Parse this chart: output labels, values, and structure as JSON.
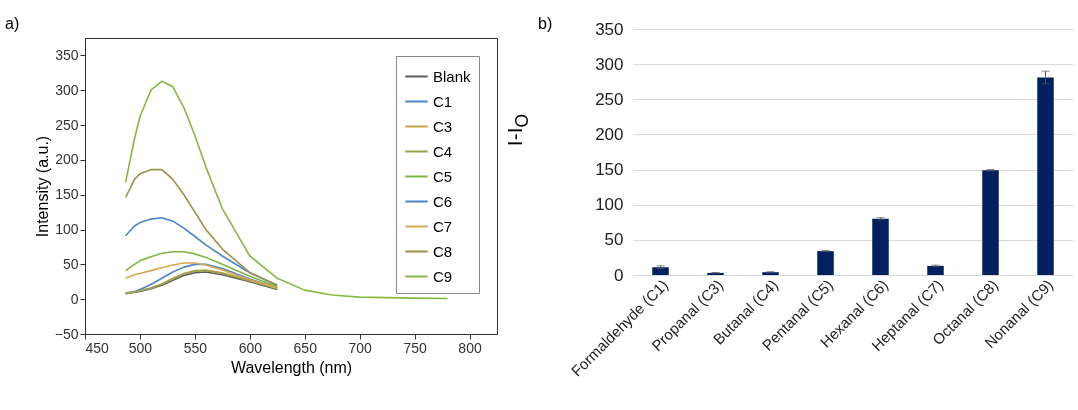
{
  "chart_data": [
    {
      "type": "line",
      "title": "a)",
      "xlabel": "Wavelength (nm)",
      "ylabel": "Intensity (a.u.)",
      "x": [
        487,
        495,
        500,
        510,
        520,
        530,
        540,
        550,
        560,
        575,
        600,
        625,
        650,
        675,
        700,
        750,
        780
      ],
      "xlim": [
        450,
        825
      ],
      "xticks": [
        450,
        500,
        550,
        600,
        650,
        700,
        750,
        800
      ],
      "ylim": [
        -50,
        375
      ],
      "yticks": [
        -50,
        0,
        50,
        100,
        150,
        200,
        250,
        300,
        350
      ],
      "grid": false,
      "legend": "top right",
      "line_style": "solid",
      "marker": "none",
      "series": [
        {
          "name": "Blank",
          "color": "#5a5a5a",
          "values": [
            9,
            10,
            11,
            15,
            20,
            27,
            34,
            38,
            39,
            35,
            25,
            14,
            null,
            null,
            null,
            null,
            null
          ]
        },
        {
          "name": "C1",
          "color": "#4a86c8",
          "values": [
            8,
            11,
            14,
            21,
            30,
            39,
            46,
            50,
            50,
            44,
            29,
            16,
            null,
            null,
            null,
            null,
            null
          ]
        },
        {
          "name": "C3",
          "color": "#c8a040",
          "values": [
            9,
            10,
            12,
            16,
            22,
            30,
            37,
            41,
            42,
            38,
            27,
            16,
            null,
            null,
            null,
            null,
            null
          ]
        },
        {
          "name": "C4",
          "color": "#9aa050",
          "values": [
            8,
            10,
            12,
            16,
            21,
            29,
            36,
            40,
            41,
            37,
            26,
            15,
            null,
            null,
            null,
            null,
            null
          ]
        },
        {
          "name": "C5",
          "color": "#7ab840",
          "values": [
            41,
            50,
            55,
            61,
            66,
            68,
            68,
            65,
            60,
            50,
            33,
            18,
            null,
            null,
            null,
            null,
            null
          ]
        },
        {
          "name": "C6",
          "color": "#4a86c8",
          "values": [
            91,
            105,
            110,
            115,
            117,
            112,
            102,
            90,
            78,
            62,
            38,
            20,
            null,
            null,
            null,
            null,
            null
          ]
        },
        {
          "name": "C7",
          "color": "#d8a850",
          "values": [
            30,
            35,
            37,
            41,
            45,
            49,
            52,
            52,
            49,
            42,
            28,
            16,
            null,
            null,
            null,
            null,
            null
          ]
        },
        {
          "name": "C8",
          "color": "#9a9048",
          "values": [
            146,
            172,
            180,
            186,
            186,
            172,
            150,
            125,
            100,
            72,
            38,
            20,
            null,
            null,
            null,
            null,
            null
          ]
        },
        {
          "name": "C9",
          "color": "#88b840",
          "values": [
            168,
            230,
            262,
            300,
            313,
            305,
            275,
            235,
            190,
            130,
            62,
            30,
            13,
            6,
            3,
            1.5,
            1
          ]
        }
      ]
    },
    {
      "type": "bar",
      "title": "b)",
      "ylabel": "I-I$_{O}$",
      "categories": [
        "Formaldehyde (C1)",
        "Propanal (C3)",
        "Butanal (C4)",
        "Pentanal (C5)",
        "Hexanal (C6)",
        "Heptanal (C7)",
        "Octanal (C8)",
        "Nonanal (C9)"
      ],
      "ylim": [
        0,
        350
      ],
      "yticks": [
        0,
        50,
        100,
        150,
        200,
        250,
        300,
        350
      ],
      "grid": "y",
      "series": [
        {
          "color": "#002060",
          "values": [
            11,
            3,
            4,
            34,
            80,
            13,
            149,
            281
          ],
          "errors": [
            2,
            0.5,
            0.7,
            1,
            1.5,
            1,
            1,
            9
          ]
        }
      ]
    }
  ]
}
